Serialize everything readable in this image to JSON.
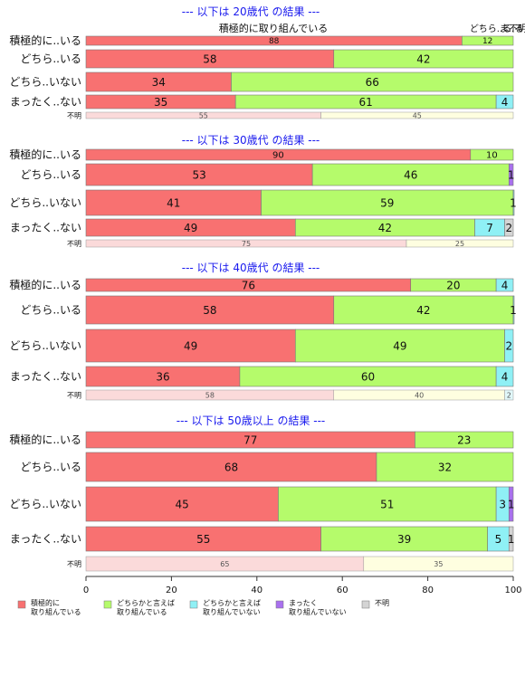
{
  "chart_data": {
    "type": "bar",
    "orientation": "horizontal",
    "stacked": true,
    "xlim": [
      0,
      100
    ],
    "x_ticks": [
      "0",
      "20",
      "40",
      "60",
      "80",
      "100"
    ],
    "column_labels": [
      "積極的に取り組んでいる",
      "どちら..る",
      "ま..る",
      "不明"
    ],
    "series": [
      {
        "key": "s1",
        "name": "積極的に\n取り組んでいる",
        "color": "#f87171"
      },
      {
        "key": "s2",
        "name": "どちらかと言えば\n取り組んでいる",
        "color": "#b5fb6b"
      },
      {
        "key": "s3",
        "name": "どちらかと言えば\n取り組んでいない",
        "color": "#8ff0f5"
      },
      {
        "key": "s4",
        "name": "まったく\n取り組んでいない",
        "color": "#a970ee"
      },
      {
        "key": "s5",
        "name": "不明",
        "color": "#d4d4d4"
      }
    ],
    "panels": [
      {
        "title": "--- 以下は 20歳代 の結果 ---",
        "rows": [
          {
            "label": "積極的に..いる",
            "values": [
              88,
              12,
              0,
              0,
              0
            ]
          },
          {
            "label": "どちら..いる",
            "values": [
              58,
              42,
              0,
              0,
              0
            ]
          },
          {
            "label": "どちら..いない",
            "values": [
              34,
              66,
              0,
              0,
              0
            ]
          },
          {
            "label": "まったく..ない",
            "values": [
              35,
              61,
              4,
              0,
              0
            ]
          }
        ],
        "unknown": {
          "label": "不明",
          "values": [
            55,
            45
          ]
        }
      },
      {
        "title": "--- 以下は 30歳代 の結果 ---",
        "rows": [
          {
            "label": "積極的に..いる",
            "values": [
              90,
              10,
              0,
              0,
              0
            ]
          },
          {
            "label": "どちら..いる",
            "values": [
              53,
              46,
              0,
              1,
              0
            ]
          },
          {
            "label": "どちら..いない",
            "values": [
              41,
              59,
              1,
              0,
              0
            ]
          },
          {
            "label": "まったく..ない",
            "values": [
              49,
              42,
              7,
              0,
              2
            ]
          }
        ],
        "unknown": {
          "label": "不明",
          "values": [
            75,
            25
          ]
        }
      },
      {
        "title": "--- 以下は 40歳代 の結果 ---",
        "rows": [
          {
            "label": "積極的に..いる",
            "values": [
              76,
              20,
              4,
              0,
              0
            ]
          },
          {
            "label": "どちら..いる",
            "values": [
              58,
              42,
              1,
              0,
              0
            ]
          },
          {
            "label": "どちら..いない",
            "values": [
              49,
              49,
              2,
              0,
              0
            ]
          },
          {
            "label": "まったく..ない",
            "values": [
              36,
              60,
              4,
              0,
              0
            ]
          }
        ],
        "unknown": {
          "label": "不明",
          "values": [
            58,
            40,
            2
          ]
        }
      },
      {
        "title": "--- 以下は 50歳以上 の結果 ---",
        "rows": [
          {
            "label": "積極的に..いる",
            "values": [
              77,
              23,
              0,
              0,
              0
            ]
          },
          {
            "label": "どちら..いる",
            "values": [
              68,
              32,
              0,
              0,
              0
            ]
          },
          {
            "label": "どちら..いない",
            "values": [
              45,
              51,
              3,
              1,
              0
            ]
          },
          {
            "label": "まったく..ない",
            "values": [
              55,
              39,
              5,
              0,
              1
            ]
          }
        ],
        "unknown": {
          "label": "不明",
          "values": [
            65,
            35
          ]
        }
      }
    ]
  }
}
